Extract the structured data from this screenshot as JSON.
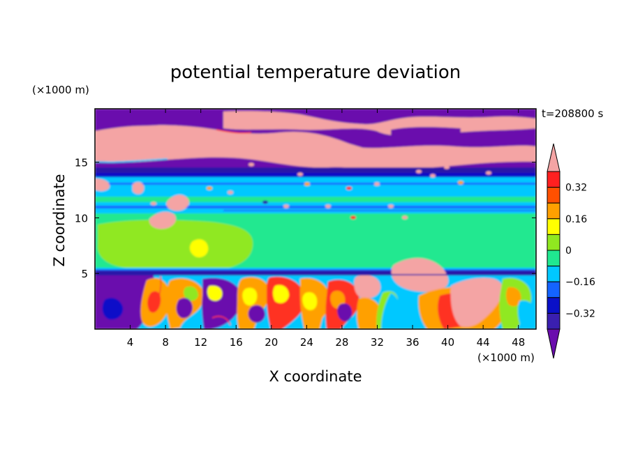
{
  "chart_data": {
    "type": "heatmap",
    "title": "potential temperature deviation",
    "xlabel": "X coordinate",
    "ylabel": "Z coordinate",
    "x_unit": "(×1000 m)",
    "y_unit": "(×1000 m)",
    "time_label": "t=208800 s",
    "xlim": [
      0,
      50
    ],
    "ylim": [
      0,
      19.8
    ],
    "x_ticks": [
      4,
      8,
      12,
      16,
      20,
      24,
      28,
      32,
      36,
      40,
      44,
      48
    ],
    "y_ticks": [
      5,
      10,
      15
    ],
    "colorbar": {
      "levels": [
        -0.4,
        -0.32,
        -0.24,
        -0.16,
        -0.08,
        0,
        0.08,
        0.16,
        0.24,
        0.32,
        0.4
      ],
      "labeled_levels": [
        0.32,
        0.16,
        0,
        -0.16,
        -0.32
      ],
      "labels": [
        "0.32",
        "0.16",
        "0",
        "−0.16",
        "−0.32"
      ],
      "colors": [
        "#6a0dad",
        "#3a1fb0",
        "#0a10c8",
        "#1464ff",
        "#00c8ff",
        "#20e890",
        "#90e820",
        "#ffff00",
        "#ffa000",
        "#ff5000",
        "#ff2020",
        "#f4a4a4"
      ],
      "extend": "both"
    },
    "layers": [
      {
        "z_range": [
          0,
          5.4
        ],
        "description_values": "mixed",
        "dominant_values": [
          -0.4,
          0.4
        ]
      },
      {
        "z_range": [
          5.4,
          10.5
        ],
        "dominant_value": 0.0
      },
      {
        "z_range": [
          10.5,
          14.5
        ],
        "dominant_value": -0.1
      },
      {
        "z_range": [
          14.5,
          19.8
        ],
        "dominant_values": [
          -0.4,
          0.4
        ]
      }
    ]
  }
}
